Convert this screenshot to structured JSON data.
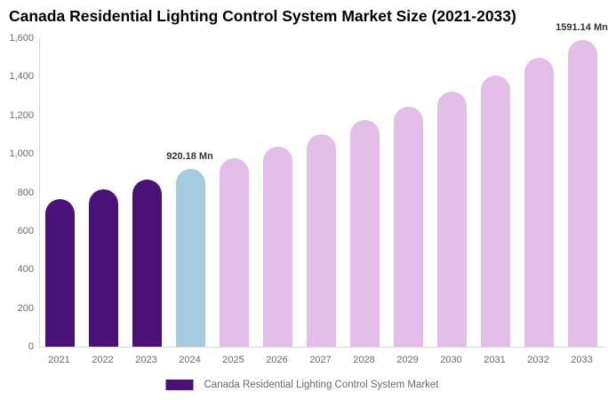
{
  "title": "Canada Residential Lighting Control System Market Size (2021-2033)",
  "legend": {
    "label": "Canada Residential Lighting Control System Market",
    "swatch_color": "#4A1179"
  },
  "colors": {
    "historical_bar": "#4A1179",
    "base_year_bar": "#A5CBDF",
    "forecast_bar": "#E2BEE8",
    "axis_line": "#d9d9d9",
    "axis_text": "#6b6b6b",
    "data_label_text": "#333333",
    "title_text": "#000000",
    "background": "#ffffff"
  },
  "chart_data": {
    "type": "bar",
    "title": "Canada Residential Lighting Control System Market Size (2021-2033)",
    "series_name": "Canada Residential Lighting Control System Market",
    "categories": [
      "2021",
      "2022",
      "2023",
      "2024",
      "2025",
      "2026",
      "2027",
      "2028",
      "2029",
      "2030",
      "2031",
      "2032",
      "2033"
    ],
    "values": [
      765,
      815,
      866,
      920.18,
      978,
      1039,
      1104,
      1174,
      1247,
      1325,
      1408,
      1497,
      1591.14
    ],
    "unit": "Mn",
    "bar_roles": [
      "historical",
      "historical",
      "historical",
      "base_year",
      "forecast",
      "forecast",
      "forecast",
      "forecast",
      "forecast",
      "forecast",
      "forecast",
      "forecast",
      "forecast"
    ],
    "data_labels": [
      {
        "category": "2024",
        "text": "920.18 Mn"
      },
      {
        "category": "2033",
        "text": "1591.14 Mn"
      }
    ],
    "xlabel": "",
    "ylabel": "",
    "ylim": [
      0,
      1600
    ],
    "y_tick_values": [
      0,
      200,
      400,
      600,
      800,
      1000,
      1200,
      1400,
      1600
    ],
    "y_tick_labels": [
      "0",
      "200",
      "400",
      "600",
      "800",
      "1,000",
      "1,200",
      "1,400",
      "1,600"
    ],
    "grid": false,
    "legend_position": "bottom"
  }
}
